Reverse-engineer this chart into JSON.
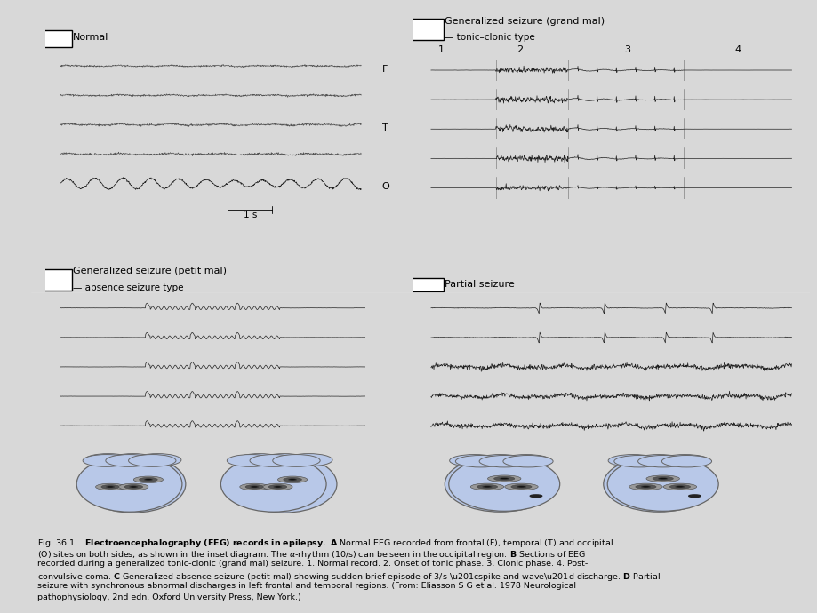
{
  "bg_color": "#d8d8d8",
  "panel_bg": "#ffffff",
  "eeg_color": "#333333",
  "eeg_color_light": "#888888",
  "brain_fill": "#b8c8e8",
  "brain_fill2": "#c8d8f0",
  "brain_edge": "#666666",
  "electrode_outer": "#888888",
  "electrode_inner": "#222222",
  "caption_bold": "Electroencephalography (EEG) records in epilepsy.",
  "caption_A": " A Normal EEG recorded from frontal (F), temporal (T) and occipital",
  "caption_rest1": "(O) sites on both sides, as shown in the inset diagram. The α-rhythm (10/s) can be seen in the occipital region.",
  "caption_B": " B Sections of EEG",
  "caption_rest2": "recorded during a generalized tonic-clonic (grand mal) seizure. 1. Normal record. 2. Onset of tonic phase. 3. Clonic phase. 4. Post-",
  "caption_rest3": "convulsive coma.",
  "caption_C": " C Generalized absence seizure (petit mal) showing sudden brief episode of 3/s “spike and wave” discharge.",
  "caption_D": " D Partial",
  "caption_rest4": "seizure with synchronous abnormal discharges in left frontal and temporal regions. (From: Eliasson S G et al. 1978 Neurological",
  "caption_rest5": "pathophysiology, 2nd edn. Oxford University Press, New York.)"
}
